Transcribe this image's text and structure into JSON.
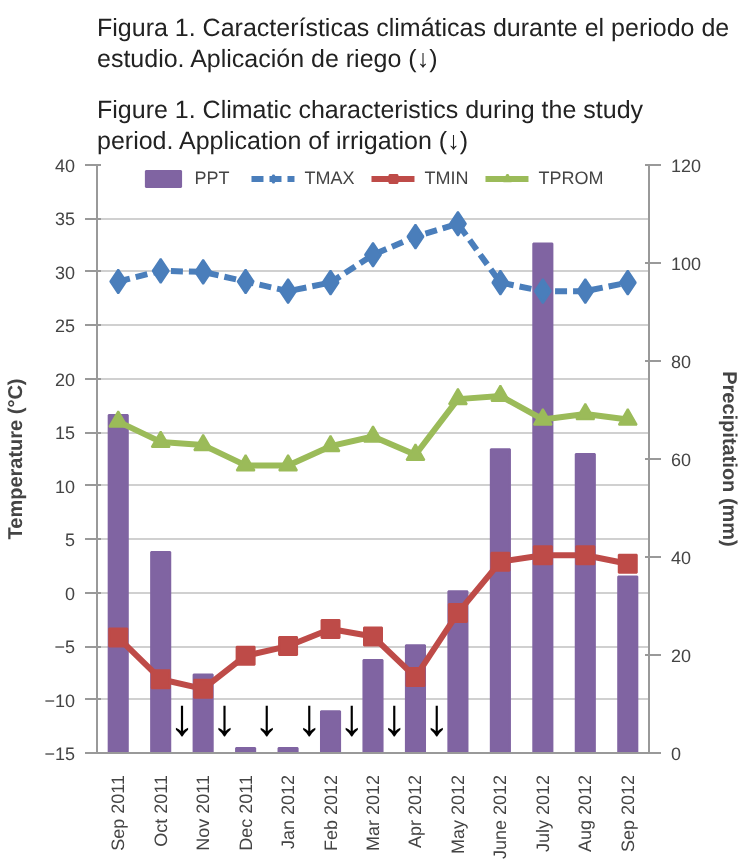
{
  "chart_data": {
    "type": "bar",
    "title": "Figura 1. Características climáticas durante el periodo de estudio. Aplicación de riego (↓)",
    "subtitle": "Figure 1. Climatic characteristics during the study period. Application of irrigation (↓)",
    "ylabel": "Temperature (°C)",
    "y2label": "Precipitation (mm)",
    "categories": [
      "Sep 2011",
      "Oct 2011",
      "Nov 2011",
      "Dec 2011",
      "Jan 2012",
      "Feb 2012",
      "Mar 2012",
      "Apr 2012",
      "May 2012",
      "June 2012",
      "July 2012",
      "Aug 2012",
      "Sep 2012"
    ],
    "series": [
      {
        "name": "PPT",
        "axis": "y2",
        "color": "#8064a2",
        "values": [
          69,
          41,
          16,
          1,
          1,
          8.5,
          19,
          22,
          33,
          62,
          104,
          61,
          36
        ]
      },
      {
        "name": "TMAX",
        "type": "line",
        "color": "#4a7ebb",
        "marker": "diamond",
        "line_style": "dashed",
        "values": [
          29.1,
          30.1,
          30,
          29.1,
          28.2,
          29,
          31.6,
          33.3,
          34.5,
          29,
          28.2,
          28.2,
          29
        ]
      },
      {
        "name": "TMIN",
        "type": "line",
        "color": "#be4b48",
        "marker": "square",
        "line_style": "solid",
        "values": [
          -4.2,
          -8.1,
          -9,
          -5.9,
          -5,
          -3.4,
          -4.1,
          -7.9,
          -1.9,
          2.9,
          3.5,
          3.5,
          2.7
        ]
      },
      {
        "name": "TPROM",
        "type": "line",
        "color": "#9bbb59",
        "marker": "triangle",
        "line_style": "solid",
        "values": [
          16,
          14.1,
          13.8,
          11.9,
          11.9,
          13.7,
          14.6,
          12.9,
          18.1,
          18.4,
          16.2,
          16.7,
          16.2
        ]
      }
    ],
    "ylim": [
      -15,
      40
    ],
    "yticks": [
      -15,
      -10,
      -5,
      0,
      5,
      10,
      15,
      20,
      25,
      30,
      35,
      40
    ],
    "y2lim": [
      0,
      120
    ],
    "y2ticks": [
      0,
      20,
      40,
      60,
      80,
      100,
      120
    ],
    "grid": "y",
    "legend": "top",
    "annotations": [
      "↓",
      "↓",
      "↓",
      "↓",
      "↓",
      "↓",
      "↓"
    ]
  }
}
